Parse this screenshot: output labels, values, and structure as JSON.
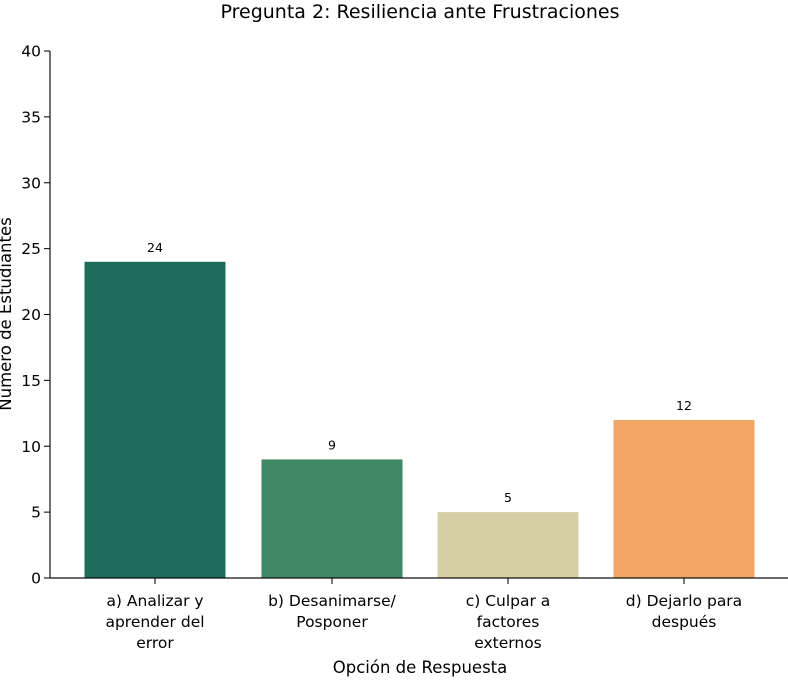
{
  "chart_data": {
    "type": "bar",
    "title": "Pregunta 2: Resiliencia ante Frustraciones",
    "xlabel": "Opción de Respuesta",
    "ylabel": "Número de Estudiantes",
    "categories": [
      [
        "a) Analizar y",
        "aprender del",
        "error"
      ],
      [
        "b) Desanimarse/",
        "Posponer"
      ],
      [
        "c) Culpar a",
        "factores",
        "externos"
      ],
      [
        "d) Dejarlo para",
        "después"
      ]
    ],
    "values": [
      24,
      9,
      5,
      12
    ],
    "data_labels": [
      "24",
      "9",
      "5",
      "12"
    ],
    "colors": [
      "#1f6b5b",
      "#3f8866",
      "#d6cfa5",
      "#f2a663"
    ],
    "ylim": [
      0,
      40
    ],
    "yticks": [
      0,
      5,
      10,
      15,
      20,
      25,
      30,
      35,
      40
    ],
    "grid": false,
    "legend": "none"
  }
}
